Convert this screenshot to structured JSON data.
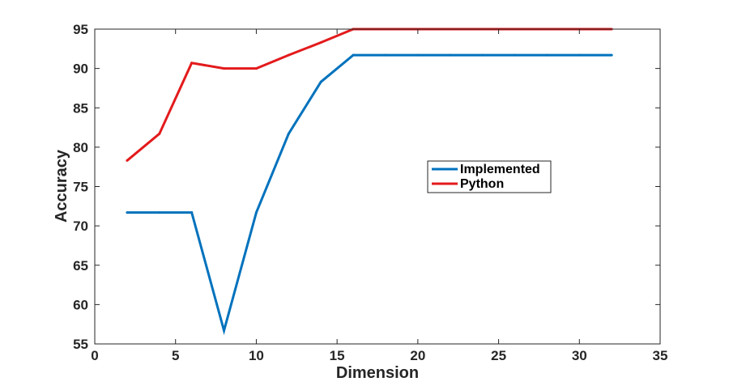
{
  "chart_data": {
    "type": "line",
    "title": "",
    "xlabel": "Dimension",
    "ylabel": "Accuracy",
    "xlim": [
      0,
      35
    ],
    "ylim": [
      55,
      95
    ],
    "xticks": [
      0,
      5,
      10,
      15,
      20,
      25,
      30,
      35
    ],
    "yticks": [
      55,
      60,
      65,
      70,
      75,
      80,
      85,
      90,
      95
    ],
    "grid": false,
    "legend_position": "center-right",
    "series": [
      {
        "name": "Implemented",
        "color": "#0072BD",
        "x": [
          2,
          4,
          6,
          8,
          10,
          12,
          14,
          16,
          18,
          20,
          22,
          24,
          26,
          28,
          30,
          32
        ],
        "y": [
          71.7,
          71.7,
          71.7,
          56.7,
          71.7,
          81.7,
          88.3,
          91.7,
          91.7,
          91.7,
          91.7,
          91.7,
          91.7,
          91.7,
          91.7,
          91.7
        ]
      },
      {
        "name": "Python",
        "color": "#E31A1C",
        "x": [
          2,
          4,
          6,
          8,
          10,
          12,
          14,
          16,
          18,
          20,
          22,
          24,
          26,
          28,
          30,
          32
        ],
        "y": [
          78.3,
          81.7,
          90.7,
          90.0,
          90.0,
          91.7,
          93.3,
          95.0,
          95.0,
          95.0,
          95.0,
          95.0,
          95.0,
          95.0,
          95.0,
          95.0
        ]
      }
    ]
  }
}
